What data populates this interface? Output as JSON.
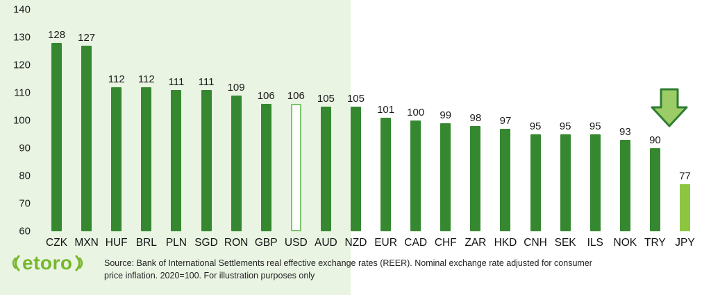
{
  "chart_data": {
    "type": "bar",
    "title": "",
    "categories": [
      "CZK",
      "MXN",
      "HUF",
      "BRL",
      "PLN",
      "SGD",
      "RON",
      "GBP",
      "USD",
      "AUD",
      "NZD",
      "EUR",
      "CAD",
      "CHF",
      "ZAR",
      "HKD",
      "CNH",
      "SEK",
      "ILS",
      "NOK",
      "TRY",
      "JPY"
    ],
    "values": [
      128,
      127,
      112,
      112,
      111,
      111,
      109,
      106,
      106,
      105,
      105,
      101,
      100,
      99,
      98,
      97,
      95,
      95,
      95,
      93,
      90,
      77
    ],
    "ylim": [
      60,
      140
    ],
    "yticks": [
      60,
      70,
      80,
      90,
      100,
      110,
      120,
      130,
      140
    ],
    "grid": false,
    "legend_position": "none",
    "bar_styles": {
      "USD": "outline",
      "JPY": "light"
    },
    "highlight_band": {
      "from_category": "CZK",
      "to_category": "NZD",
      "color": "#e9f4e3"
    },
    "annotations": [
      {
        "type": "down-arrow",
        "target": "JPY"
      }
    ],
    "colors": {
      "bar": "#35882f",
      "bar_light": "#8dc63f",
      "outline_fill": "#fbfdf9",
      "outline_border": "#7fc46f",
      "arrow_fill": "#9ccc65",
      "arrow_stroke": "#2e7d32",
      "label": "#1a1a1a"
    }
  },
  "footer": {
    "logo_text": "etoro",
    "logo_color": "#76b82a",
    "source_line1": "Source: Bank of International Settlements real effective exchange rates (REER). Nominal exchange rate adjusted for consumer",
    "source_line2": "price inflation. 2020=100. For illustration purposes only"
  }
}
